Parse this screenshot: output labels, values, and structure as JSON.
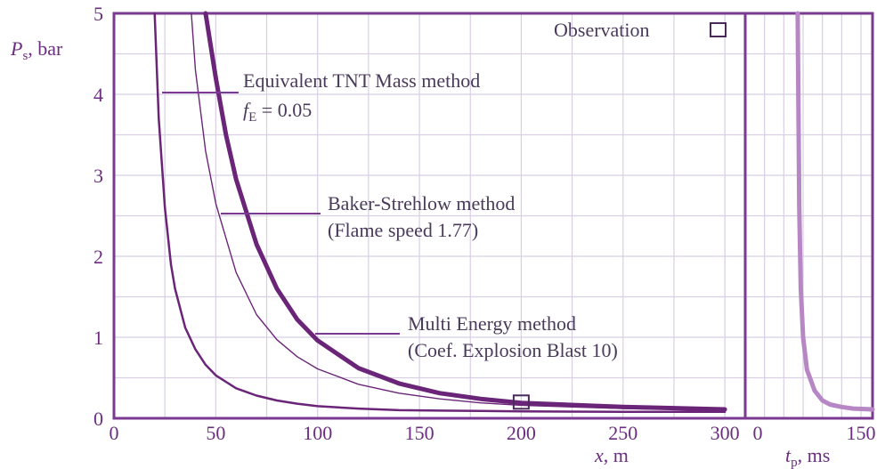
{
  "chart_data": [
    {
      "type": "line",
      "xlabel_var": "x",
      "xlabel_unit": ", m",
      "ylabel_var": "P",
      "ylabel_sub": "s",
      "ylabel_unit": ", bar",
      "xlim": [
        0,
        310
      ],
      "ylim": [
        0,
        5
      ],
      "xticks": [
        "0",
        "50",
        "100",
        "150",
        "200",
        "250",
        "300"
      ],
      "yticks": [
        "0",
        "1",
        "2",
        "3",
        "4",
        "5"
      ],
      "grid": true,
      "series": [
        {
          "name": "Equivalent TNT Mass method",
          "param": "f_E = 0.05",
          "x": [
            20,
            22,
            25,
            28,
            30,
            35,
            40,
            45,
            50,
            60,
            70,
            80,
            90,
            100,
            120,
            140,
            160,
            180,
            200,
            250,
            300
          ],
          "y": [
            5.0,
            3.7,
            2.6,
            1.9,
            1.6,
            1.12,
            0.85,
            0.66,
            0.53,
            0.37,
            0.28,
            0.22,
            0.18,
            0.15,
            0.12,
            0.1,
            0.095,
            0.09,
            0.085,
            0.08,
            0.08
          ]
        },
        {
          "name": "Multi Energy method",
          "param": "Coef. Explosion Blast 10",
          "x": [
            38,
            40,
            45,
            50,
            60,
            70,
            80,
            90,
            100,
            120,
            140,
            160,
            180,
            200,
            250,
            300
          ],
          "y": [
            5.0,
            4.3,
            3.3,
            2.65,
            1.8,
            1.28,
            0.97,
            0.76,
            0.61,
            0.42,
            0.31,
            0.24,
            0.19,
            0.16,
            0.12,
            0.1
          ]
        },
        {
          "name": "Baker-Strehlow method",
          "param": "Flame speed 1.77",
          "x": [
            45,
            50,
            55,
            60,
            70,
            80,
            90,
            100,
            120,
            140,
            160,
            180,
            200,
            250,
            300
          ],
          "y": [
            5.0,
            4.2,
            3.5,
            2.95,
            2.15,
            1.6,
            1.22,
            0.96,
            0.62,
            0.43,
            0.31,
            0.24,
            0.19,
            0.14,
            0.11
          ]
        }
      ],
      "observation": {
        "label": "Observation",
        "x": 200,
        "y": 0.2
      }
    },
    {
      "type": "line",
      "xlabel_var": "t",
      "xlabel_sub": "p",
      "xlabel_unit": ", ms",
      "xlim": [
        0,
        165
      ],
      "ylim": [
        0,
        5
      ],
      "xticks": [
        "0",
        "150"
      ],
      "grid": true,
      "series": [
        {
          "x": [
            68,
            69,
            70,
            72,
            75,
            80,
            90,
            100,
            110,
            125,
            140,
            165
          ],
          "y": [
            5.0,
            3.8,
            2.6,
            1.6,
            1.0,
            0.6,
            0.34,
            0.22,
            0.17,
            0.14,
            0.12,
            0.11
          ]
        }
      ]
    }
  ],
  "annotations": {
    "tnt_label": "Equivalent TNT Mass method",
    "fe_var": "f",
    "fe_sub": "E",
    "fe_value": " = 0.05",
    "baker_label": "Baker-Strehlow method",
    "baker_param": "(Flame speed 1.77)",
    "multi_label": "Multi Energy method",
    "multi_param": "(Coef. Explosion Blast 10)"
  },
  "colors": {
    "grid": "#d8cfe3",
    "frame": "#7a3a92",
    "curve": "#6b2578",
    "curve_light": "#b786c4",
    "text": "#4a3a5a"
  }
}
